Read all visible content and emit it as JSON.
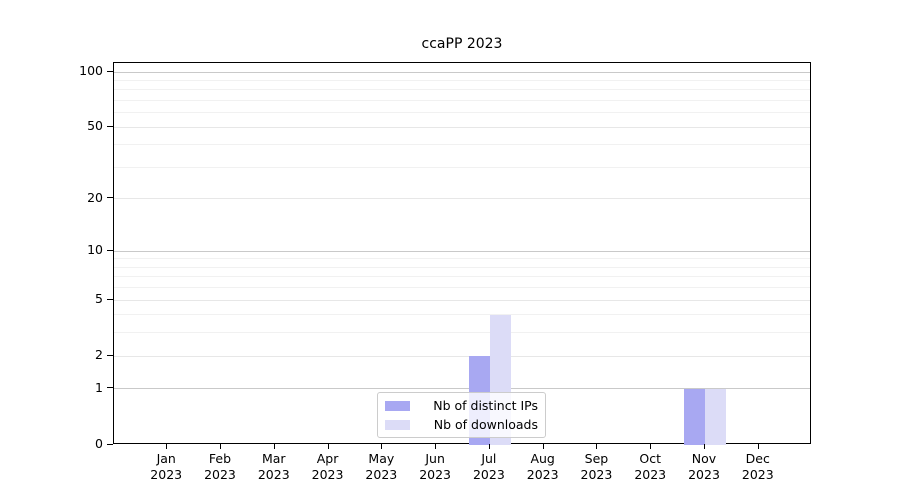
{
  "chart_data": {
    "type": "bar",
    "title": "ccaPP 2023",
    "categories": [
      "Jan 2023",
      "Feb 2023",
      "Mar 2023",
      "Apr 2023",
      "May 2023",
      "Jun 2023",
      "Jul 2023",
      "Aug 2023",
      "Sep 2023",
      "Oct 2023",
      "Nov 2023",
      "Dec 2023"
    ],
    "series": [
      {
        "name": "Nb of distinct IPs",
        "color": "#a8a8f2",
        "values": [
          0,
          0,
          0,
          0,
          0,
          0,
          2,
          0,
          0,
          0,
          1,
          0
        ]
      },
      {
        "name": "Nb of downloads",
        "color": "#dcdcf7",
        "values": [
          0,
          0,
          0,
          0,
          0,
          0,
          4,
          0,
          0,
          0,
          1,
          0
        ]
      }
    ],
    "xlabel": "",
    "ylabel": "",
    "yscale": "log(1+x)",
    "ylim": [
      0,
      112
    ],
    "yticks": [
      0,
      1,
      2,
      5,
      10,
      20,
      50,
      100
    ],
    "grid": {
      "minor_levels": [
        3,
        4,
        6,
        7,
        8,
        9,
        30,
        40,
        60,
        70,
        80,
        90
      ],
      "soft_levels": [
        2,
        5,
        20,
        50
      ],
      "strong_levels": [
        1,
        10,
        100
      ],
      "minor_color": "#f1f1f1",
      "soft_color": "#e7e7e7",
      "strong_color": "#c9c9c9"
    },
    "legend_position": "lower center"
  }
}
